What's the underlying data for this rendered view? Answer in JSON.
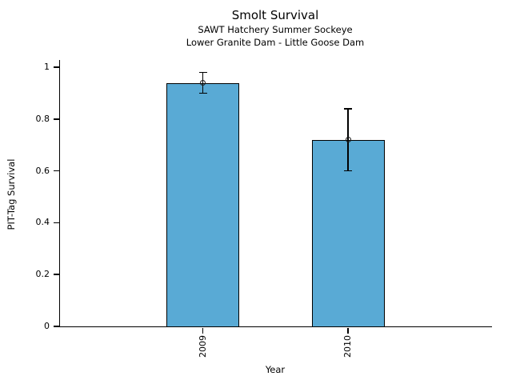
{
  "chart_data": {
    "type": "bar",
    "title": "Smolt Survival",
    "subtitle1": "SAWT Hatchery Summer Sockeye",
    "subtitle2": "Lower Granite Dam - Little Goose Dam",
    "xlabel": "Year",
    "ylabel": "PIT-Tag Survival",
    "categories": [
      "2009",
      "2010"
    ],
    "series": [
      {
        "name": "PIT-Tag Survival",
        "values": [
          0.94,
          0.72
        ],
        "error_low": [
          0.9,
          0.6
        ],
        "error_high": [
          0.98,
          0.84
        ]
      }
    ],
    "y_ticks": [
      0,
      0.2,
      0.4,
      0.6,
      0.8,
      1
    ],
    "y_tick_labels": [
      "0",
      "0.2",
      "0.4",
      "0.6",
      "0.8",
      "1"
    ],
    "ylim": [
      0,
      1.028
    ],
    "grid": false,
    "legend_position": "none",
    "bar_color": "#59aad5",
    "bar_border_color": "#000000",
    "axis_color": "#000000",
    "marker": "open-circle"
  }
}
